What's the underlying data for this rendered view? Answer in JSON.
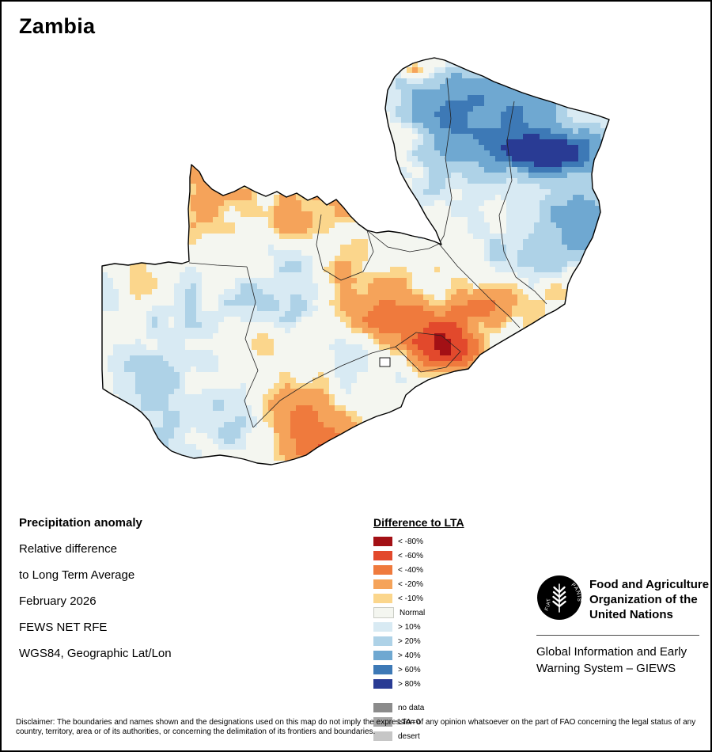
{
  "page": {
    "title": "Zambia"
  },
  "info": {
    "heading": "Precipitation anomaly",
    "lines": [
      "Relative difference",
      "to Long Term Average",
      "February 2026",
      "FEWS NET RFE",
      "WGS84, Geographic Lat/Lon"
    ]
  },
  "legend": {
    "title": "Difference to LTA",
    "items": [
      {
        "label": "< -80%",
        "color": "#a31015"
      },
      {
        "label": "< -60%",
        "color": "#e2492c"
      },
      {
        "label": "< -40%",
        "color": "#ef7a3d"
      },
      {
        "label": "< -20%",
        "color": "#f5a35a"
      },
      {
        "label": "< -10%",
        "color": "#fbd68c"
      },
      {
        "label": "Normal",
        "color": "#f4f6f0",
        "outline": true
      },
      {
        "label": "> 10%",
        "color": "#d8eaf3"
      },
      {
        "label": "> 20%",
        "color": "#aed2e7"
      },
      {
        "label": "> 40%",
        "color": "#6fa8d1"
      },
      {
        "label": "> 60%",
        "color": "#3d79b6"
      },
      {
        "label": "> 80%",
        "color": "#293b94"
      },
      {
        "label": "no data",
        "color": "#8b8b8b",
        "gap_before": true
      },
      {
        "label": "LTA=0",
        "color": "#a6a6a6"
      },
      {
        "label": "desert",
        "color": "#c6c6c6"
      }
    ]
  },
  "footer": {
    "fao_name": [
      "Food and Agriculture",
      "Organization of the",
      "United Nations"
    ],
    "fao_motto_left": "FIAT",
    "fao_motto_right": "PANIS",
    "giews": [
      "Global Information and Early",
      "Warning System – GIEWS"
    ]
  },
  "disclaimer": "Disclaimer: The boundaries and names shown and the designations used on this map do not imply the expression of any opinion whatsoever on the part of FAO concerning the legal status of any country, territory, area or of its authorities, or concerning the delimitation of its frontiers and boundaries."
}
